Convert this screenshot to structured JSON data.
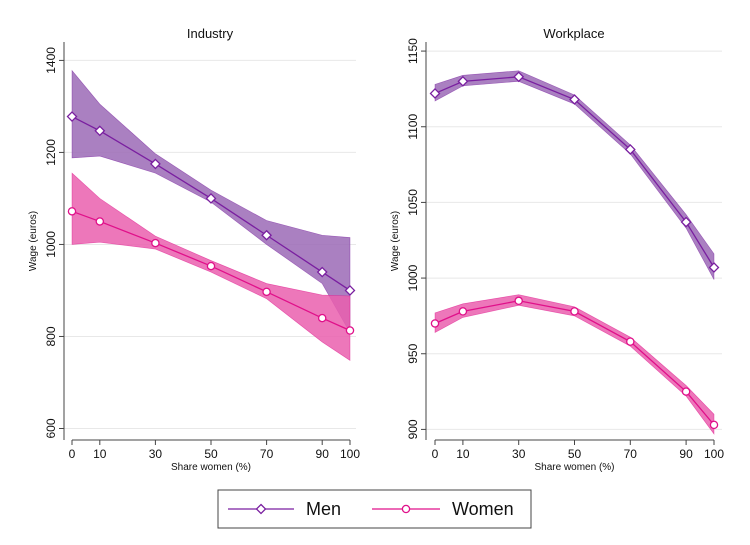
{
  "chart_data": [
    {
      "type": "line",
      "title": "Industry",
      "xlabel": "Share women (%)",
      "ylabel": "Wage (euros)",
      "x": [
        0,
        10,
        30,
        50,
        70,
        90,
        100
      ],
      "xticks": [
        0,
        10,
        30,
        50,
        70,
        90,
        100
      ],
      "yticks": [
        600,
        800,
        1000,
        1200,
        1400
      ],
      "ylim": [
        575,
        1440
      ],
      "grid": true,
      "series": [
        {
          "name": "Men",
          "color": "#7a1fa0",
          "band_color": "#9b6ab6",
          "marker": "diamond",
          "values": [
            1278,
            1247,
            1175,
            1100,
            1020,
            940,
            900
          ],
          "ci_lower": [
            1188,
            1192,
            1155,
            1092,
            1000,
            915,
            808
          ],
          "ci_upper": [
            1378,
            1305,
            1197,
            1118,
            1052,
            1020,
            1015
          ]
        },
        {
          "name": "Women",
          "color": "#e0108a",
          "band_color": "#ea5fae",
          "marker": "circle",
          "values": [
            1072,
            1050,
            1003,
            953,
            897,
            840,
            813
          ],
          "ci_lower": [
            1000,
            1005,
            990,
            940,
            882,
            788,
            748
          ],
          "ci_upper": [
            1155,
            1100,
            1018,
            965,
            915,
            890,
            888
          ]
        }
      ]
    },
    {
      "type": "line",
      "title": "Workplace",
      "xlabel": "Share women (%)",
      "ylabel": "Wage (euros)",
      "x": [
        0,
        10,
        30,
        50,
        70,
        90,
        100
      ],
      "xticks": [
        0,
        10,
        30,
        50,
        70,
        90,
        100
      ],
      "yticks": [
        900,
        950,
        1000,
        1050,
        1100,
        1150
      ],
      "ylim": [
        893,
        1156
      ],
      "grid": true,
      "series": [
        {
          "name": "Men",
          "color": "#7a1fa0",
          "band_color": "#9b6ab6",
          "marker": "diamond",
          "values": [
            1122,
            1130,
            1133,
            1118,
            1085,
            1037,
            1007
          ],
          "ci_lower": [
            1117,
            1127,
            1130,
            1115,
            1082,
            1033,
            999
          ],
          "ci_upper": [
            1128,
            1134,
            1137,
            1121,
            1088,
            1042,
            1016
          ]
        },
        {
          "name": "Women",
          "color": "#e0108a",
          "band_color": "#ea5fae",
          "marker": "circle",
          "values": [
            970,
            978,
            985,
            978,
            958,
            925,
            903
          ],
          "ci_lower": [
            964,
            974,
            982,
            975,
            955,
            922,
            897
          ],
          "ci_upper": [
            977,
            983,
            989,
            981,
            961,
            929,
            910
          ]
        }
      ]
    }
  ],
  "legend": {
    "position": "bottom-center",
    "items": [
      {
        "label": "Men",
        "color": "#7a1fa0",
        "marker": "diamond"
      },
      {
        "label": "Women",
        "color": "#e0108a",
        "marker": "circle"
      }
    ]
  }
}
